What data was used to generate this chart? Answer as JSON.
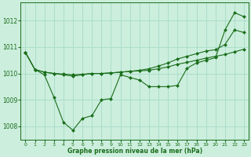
{
  "background_color": "#cceedd",
  "grid_color": "#aaddcc",
  "line_color": "#1a6e1a",
  "marker_color": "#1a6e1a",
  "xlabel": "Graphe pression niveau de la mer (hPa)",
  "xlim": [
    -0.5,
    23.5
  ],
  "ylim": [
    1007.5,
    1012.7
  ],
  "yticks": [
    1008,
    1009,
    1010,
    1011,
    1012
  ],
  "xticks": [
    0,
    1,
    2,
    3,
    4,
    5,
    6,
    7,
    8,
    9,
    10,
    11,
    12,
    13,
    14,
    15,
    16,
    17,
    18,
    19,
    20,
    21,
    22,
    23
  ],
  "series": [
    [
      1010.8,
      1010.15,
      1010.05,
      1010.0,
      1009.95,
      1009.9,
      1009.95,
      1010.0,
      1010.0,
      1010.02,
      1010.05,
      1010.08,
      1010.1,
      1010.12,
      1010.18,
      1010.25,
      1010.35,
      1010.42,
      1010.5,
      1010.58,
      1010.65,
      1010.72,
      1010.82,
      1010.92
    ],
    [
      1010.8,
      1010.15,
      1010.05,
      1010.0,
      1009.98,
      1009.95,
      1009.97,
      1010.0,
      1010.0,
      1010.02,
      1010.05,
      1010.08,
      1010.12,
      1010.18,
      1010.28,
      1010.4,
      1010.55,
      1010.65,
      1010.75,
      1010.85,
      1010.9,
      1011.1,
      1011.65,
      1011.55
    ],
    [
      1010.8,
      1010.15,
      1009.95,
      1009.1,
      1008.15,
      1007.85,
      1008.3,
      1008.4,
      1009.0,
      1009.05,
      1009.95,
      1009.85,
      1009.75,
      1009.5,
      1009.5,
      1009.5,
      1009.55,
      1010.2,
      1010.4,
      1010.5,
      1010.6,
      1011.65,
      1012.3,
      1012.15
    ]
  ]
}
